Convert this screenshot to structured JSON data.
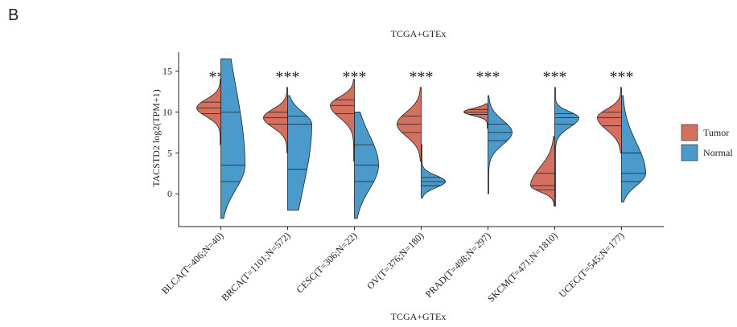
{
  "panel_label": "B",
  "chart_data": {
    "type": "split-violin",
    "title": "TCGA+GTEx",
    "x_label": "TCGA+GTEx",
    "y_label": "TACSTD2  log2(TPM+1)",
    "categories": [
      "BLCA(T=406;N=40)",
      "BRCA(T=1101;N=572)",
      "CESC(T=306;N=22)",
      "OV(T=376;N=180)",
      "PRAD(T=498;N=297)",
      "SKCM(T=471;N=1810)",
      "UCEC(T=545;N=177)"
    ],
    "annotations": [
      "***",
      "***",
      "***",
      "***",
      "***",
      "***",
      "***"
    ],
    "series": [
      {
        "name": "Tumor",
        "color": "#d4705f",
        "values": [
          {
            "min": 6,
            "q1": 9.8,
            "median": 10.5,
            "q3": 11.2,
            "max": 14
          },
          {
            "min": 5,
            "q1": 8.5,
            "median": 9.3,
            "q3": 10,
            "max": 13
          },
          {
            "min": 4,
            "q1": 9.8,
            "median": 10.8,
            "q3": 11.5,
            "max": 14
          },
          {
            "min": 4,
            "q1": 7.5,
            "median": 8.5,
            "q3": 9.5,
            "max": 13
          },
          {
            "min": 8,
            "q1": 9.7,
            "median": 10,
            "q3": 10.3,
            "max": 11
          },
          {
            "min": -1.5,
            "q1": 0.5,
            "median": 1,
            "q3": 2.5,
            "max": 7
          },
          {
            "min": 5,
            "q1": 8.3,
            "median": 9.3,
            "q3": 10,
            "max": 13
          }
        ]
      },
      {
        "name": "Normal",
        "color": "#4a9bcb",
        "values": [
          {
            "min": -3,
            "q1": 1.5,
            "median": 3.5,
            "q3": 10,
            "max": 16.5
          },
          {
            "min": -2,
            "q1": 3,
            "median": 8.5,
            "q3": 9.5,
            "max": 12
          },
          {
            "min": -3,
            "q1": 1.5,
            "median": 3.5,
            "q3": 6,
            "max": 10
          },
          {
            "min": -0.5,
            "q1": 1,
            "median": 1.5,
            "q3": 2,
            "max": 6
          },
          {
            "min": 0,
            "q1": 6.5,
            "median": 7.5,
            "q3": 8.5,
            "max": 12
          },
          {
            "min": -1.5,
            "q1": 8.5,
            "median": 9.3,
            "q3": 9.8,
            "max": 13
          },
          {
            "min": -1,
            "q1": 1.5,
            "median": 2.5,
            "q3": 5,
            "max": 12
          }
        ]
      }
    ],
    "ylim": [
      -4,
      17.3
    ],
    "yticks": [
      0,
      5,
      10,
      15
    ],
    "legend": "right"
  }
}
